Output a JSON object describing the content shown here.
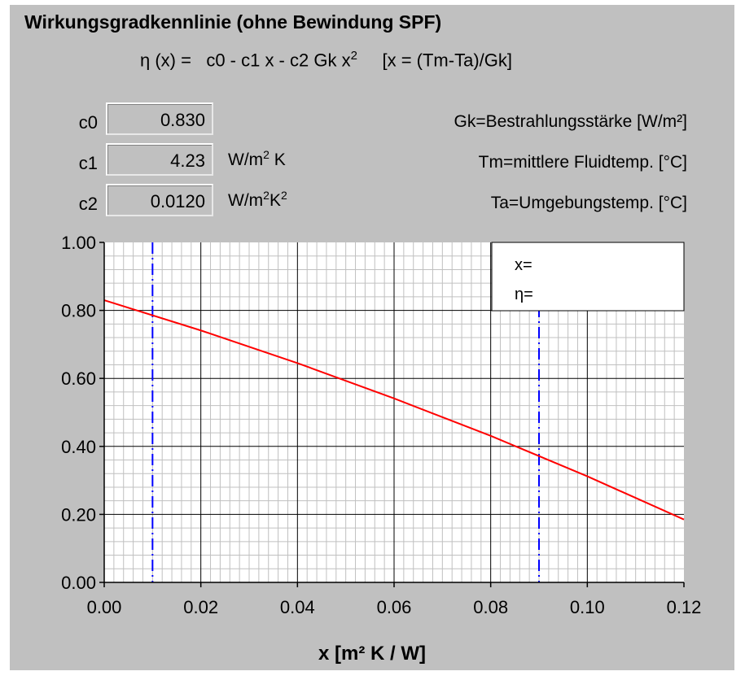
{
  "title": "Wirkungsgradkennlinie (ohne Bewindung SPF)",
  "formula": {
    "lhs": "η (x) =",
    "expr": "c0 - c1 x - c2 Gk x",
    "exp": "2",
    "def": "[x = (Tm-Ta)/Gk]"
  },
  "coefficients": [
    {
      "label": "c0",
      "value": "0.830",
      "unit": "",
      "unit_sup": "",
      "unit_tail": ""
    },
    {
      "label": "c1",
      "value": "4.23",
      "unit": "W/m",
      "unit_sup": "2",
      "unit_tail": " K"
    },
    {
      "label": "c2",
      "value": "0.0120",
      "unit": "W/m",
      "unit_sup": "2",
      "unit_tail": "K",
      "unit_sup2": "2"
    }
  ],
  "legend": [
    "Gk=Bestrahlungsstärke [W/m²]",
    "Tm=mittlere Fluidtemp. [°C]",
    "Ta=Umgebungstemp. [°C]"
  ],
  "readout": {
    "x_label": "x=",
    "eta_label": "η="
  },
  "colors": {
    "curve": "#ff0000",
    "markers": "#0000ff",
    "major_grid": "#000000",
    "minor_grid": "#c0c0c0",
    "plot_bg": "#ffffff",
    "panel_bg": "#c0c0c0"
  },
  "chart_data": {
    "type": "line",
    "title": "",
    "xlabel": "x [m² K / W]",
    "ylabel": "",
    "xlim": [
      0,
      0.12
    ],
    "ylim": [
      0,
      1.0
    ],
    "x_ticks": [
      "0.00",
      "0.02",
      "0.04",
      "0.06",
      "0.08",
      "0.10",
      "0.12"
    ],
    "y_ticks": [
      "0.00",
      "0.20",
      "0.40",
      "0.60",
      "0.80",
      "1.00"
    ],
    "grid": true,
    "series": [
      {
        "x": [
          0.0,
          0.02,
          0.04,
          0.06,
          0.08,
          0.1,
          0.12
        ],
        "y": [
          0.83,
          0.741,
          0.645,
          0.541,
          0.431,
          0.312,
          0.185
        ]
      }
    ],
    "vertical_markers": [
      0.01,
      0.09
    ]
  }
}
